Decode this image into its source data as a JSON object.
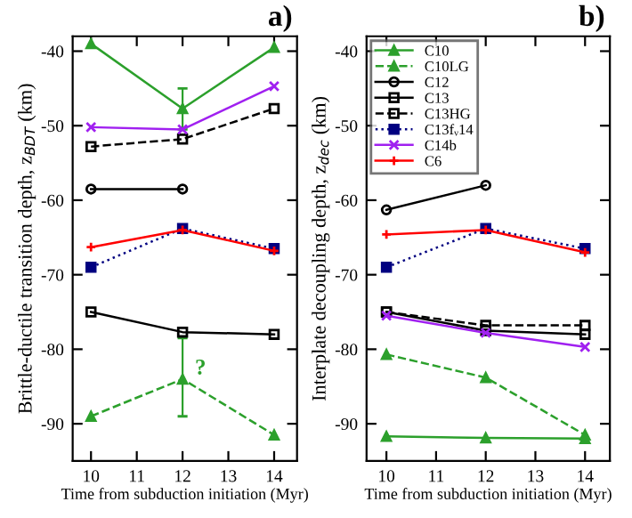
{
  "chart_data": [
    {
      "type": "line",
      "xlabel": "Time from subduction initiation (Myr)",
      "ylabel": "Brittle-ductile transition depth, z$_{BDT}$ (km)",
      "x": [
        10,
        12,
        14
      ],
      "xlim": [
        9.6,
        14.5
      ],
      "xticks": [
        10,
        11,
        12,
        13,
        14
      ],
      "ylim": [
        -95,
        -38
      ],
      "yticks": [
        -90,
        -80,
        -70,
        -60,
        -50,
        -40
      ],
      "legend": false,
      "grid": false,
      "annotations": [
        "a)",
        {
          "text": "?",
          "x": 12,
          "y": -84
        }
      ],
      "series": [
        {
          "color": "#2ca02c",
          "values": [
            -39,
            -47.7,
            -39.5
          ],
          "marker": "triangle",
          "line_style": "solid",
          "errors": [
            null,
            [
              -50.5,
              -45
            ],
            null
          ]
        },
        {
          "color": "#2ca02c",
          "values": [
            -89,
            -84,
            -91.5
          ],
          "marker": "triangle",
          "line_style": "dashed",
          "errors": [
            null,
            [
              -89,
              -78.5
            ],
            null
          ]
        },
        {
          "color": "#000000",
          "values": [
            -58.5,
            -58.5,
            null
          ],
          "marker": "circle",
          "line_style": "solid"
        },
        {
          "color": "#000000",
          "values": [
            -75,
            -77.7,
            -78
          ],
          "marker": "square",
          "line_style": "solid"
        },
        {
          "color": "#000000",
          "values": [
            -52.8,
            -51.8,
            -47.7
          ],
          "marker": "square",
          "line_style": "dashed"
        },
        {
          "color": "#000080",
          "values": [
            -69,
            -63.8,
            -66.5
          ],
          "marker": "square",
          "line_style": "dotted"
        },
        {
          "color": "#a020f0",
          "values": [
            -50.2,
            -50.5,
            -44.7
          ],
          "marker": "cross",
          "line_style": "solid"
        },
        {
          "color": "#ff0000",
          "values": [
            -66.3,
            -64,
            -66.8
          ],
          "marker": "plus",
          "line_style": "solid"
        }
      ]
    },
    {
      "type": "line",
      "xlabel": "Time from subduction initiation (Myr)",
      "ylabel": "Interplate decoupling depth, z$_{dec}$ (km)",
      "x": [
        10,
        12,
        14
      ],
      "xlim": [
        9.6,
        14.5
      ],
      "xticks": [
        10,
        11,
        12,
        13,
        14
      ],
      "ylim": [
        -95,
        -38
      ],
      "yticks": [
        -90,
        -80,
        -70,
        -60,
        -50,
        -40
      ],
      "legend": "top left",
      "grid": false,
      "annotations": [
        "b)"
      ],
      "series": [
        {
          "name": "C10",
          "color": "#2ca02c",
          "values": [
            -91.7,
            -91.9,
            -92
          ],
          "marker": "triangle",
          "line_style": "solid"
        },
        {
          "name": "C10LG",
          "color": "#2ca02c",
          "values": [
            -80.7,
            -83.8,
            -91.5
          ],
          "marker": "triangle",
          "line_style": "dashed"
        },
        {
          "name": "C12",
          "color": "#000000",
          "values": [
            -61.3,
            -58,
            null
          ],
          "marker": "circle",
          "line_style": "solid"
        },
        {
          "name": "C13",
          "color": "#000000",
          "values": [
            -75,
            -77.5,
            -78
          ],
          "marker": "square",
          "line_style": "solid"
        },
        {
          "name": "C13HG",
          "color": "#000000",
          "values": [
            -75,
            -76.8,
            -76.8
          ],
          "marker": "square",
          "line_style": "dashed"
        },
        {
          "name": "C13fᵥ14",
          "color": "#000080",
          "values": [
            -69,
            -63.8,
            -66.5
          ],
          "marker": "square",
          "line_style": "dotted"
        },
        {
          "name": "C14b",
          "color": "#a020f0",
          "values": [
            -75.5,
            -77.8,
            -79.7
          ],
          "marker": "cross",
          "line_style": "solid"
        },
        {
          "name": "C6",
          "color": "#ff0000",
          "values": [
            -64.6,
            -64,
            -67
          ],
          "marker": "plus",
          "line_style": "solid"
        }
      ]
    }
  ]
}
